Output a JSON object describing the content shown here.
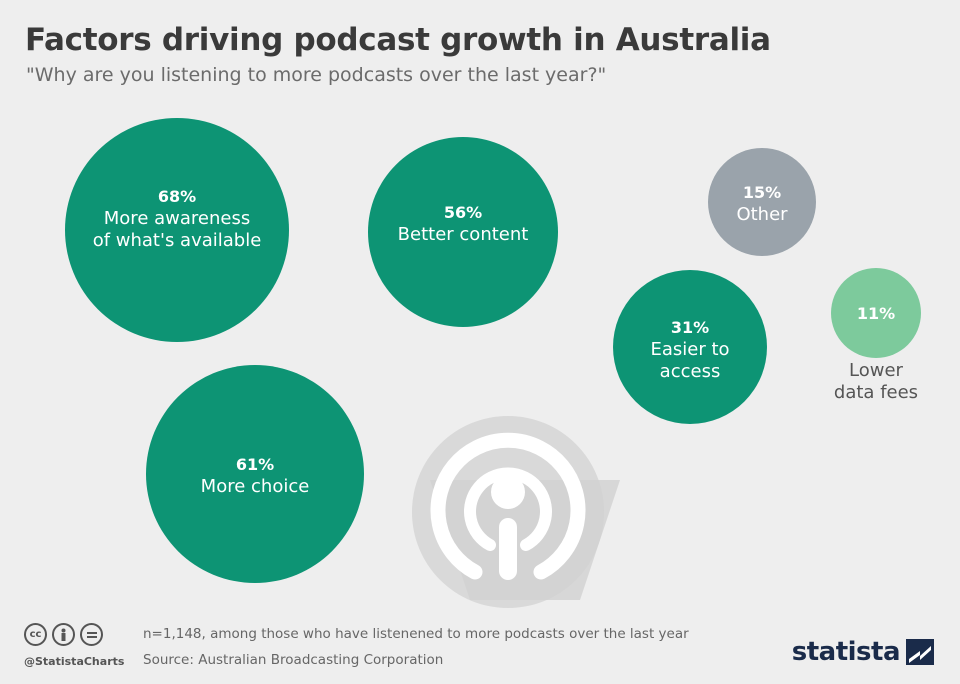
{
  "header": {
    "title": "Factors driving podcast growth in Australia",
    "subtitle": "\"Why are you listening to more podcasts over the last year?\""
  },
  "chart_data": {
    "type": "bubble",
    "items": [
      {
        "pct": "68%",
        "value": 68,
        "label_lines": [
          "More awareness",
          "of what's available"
        ],
        "color": "#0d9474"
      },
      {
        "pct": "56%",
        "value": 56,
        "label_lines": [
          "Better content"
        ],
        "color": "#0d9474"
      },
      {
        "pct": "15%",
        "value": 15,
        "label_lines": [
          "Other"
        ],
        "color": "#9aa3ab"
      },
      {
        "pct": "31%",
        "value": 31,
        "label_lines": [
          "Easier to",
          "access"
        ],
        "color": "#0d9474"
      },
      {
        "pct": "11%",
        "value": 11,
        "label_lines": [
          "Lower",
          "data fees"
        ],
        "color": "#7dca9c"
      },
      {
        "pct": "61%",
        "value": 61,
        "label_lines": [
          "More choice"
        ],
        "color": "#0d9474"
      }
    ]
  },
  "footer": {
    "icons": [
      "cc-icon",
      "person-icon",
      "equals-icon"
    ],
    "handle": "@StatistaCharts",
    "note": "n=1,148, among those who have listenened to more podcasts over the last year",
    "source": "Source: Australian Broadcasting Corporation",
    "brand": "statista"
  }
}
